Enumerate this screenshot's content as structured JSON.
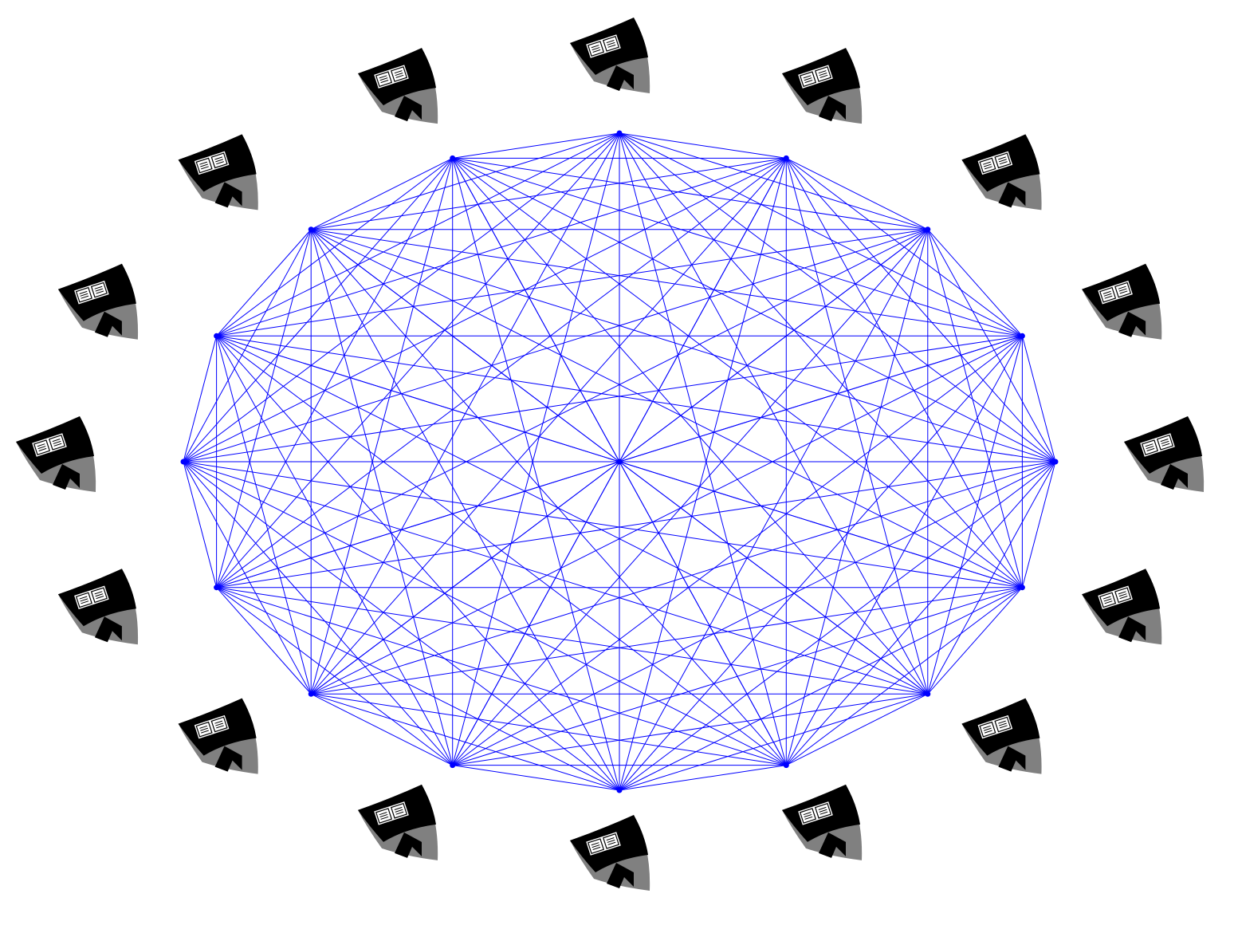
{
  "diagram": {
    "type": "complete-graph",
    "node_count": 16,
    "has_center_node": true,
    "edge_color": "#0000ff",
    "node_color": "#0000ff",
    "background": "#ffffff"
  },
  "emblem": {
    "icon": "shield-book-emblem-icon",
    "count": 16,
    "colors": {
      "dark": "#000000",
      "light": "#808080",
      "book": "#ffffff"
    }
  }
}
